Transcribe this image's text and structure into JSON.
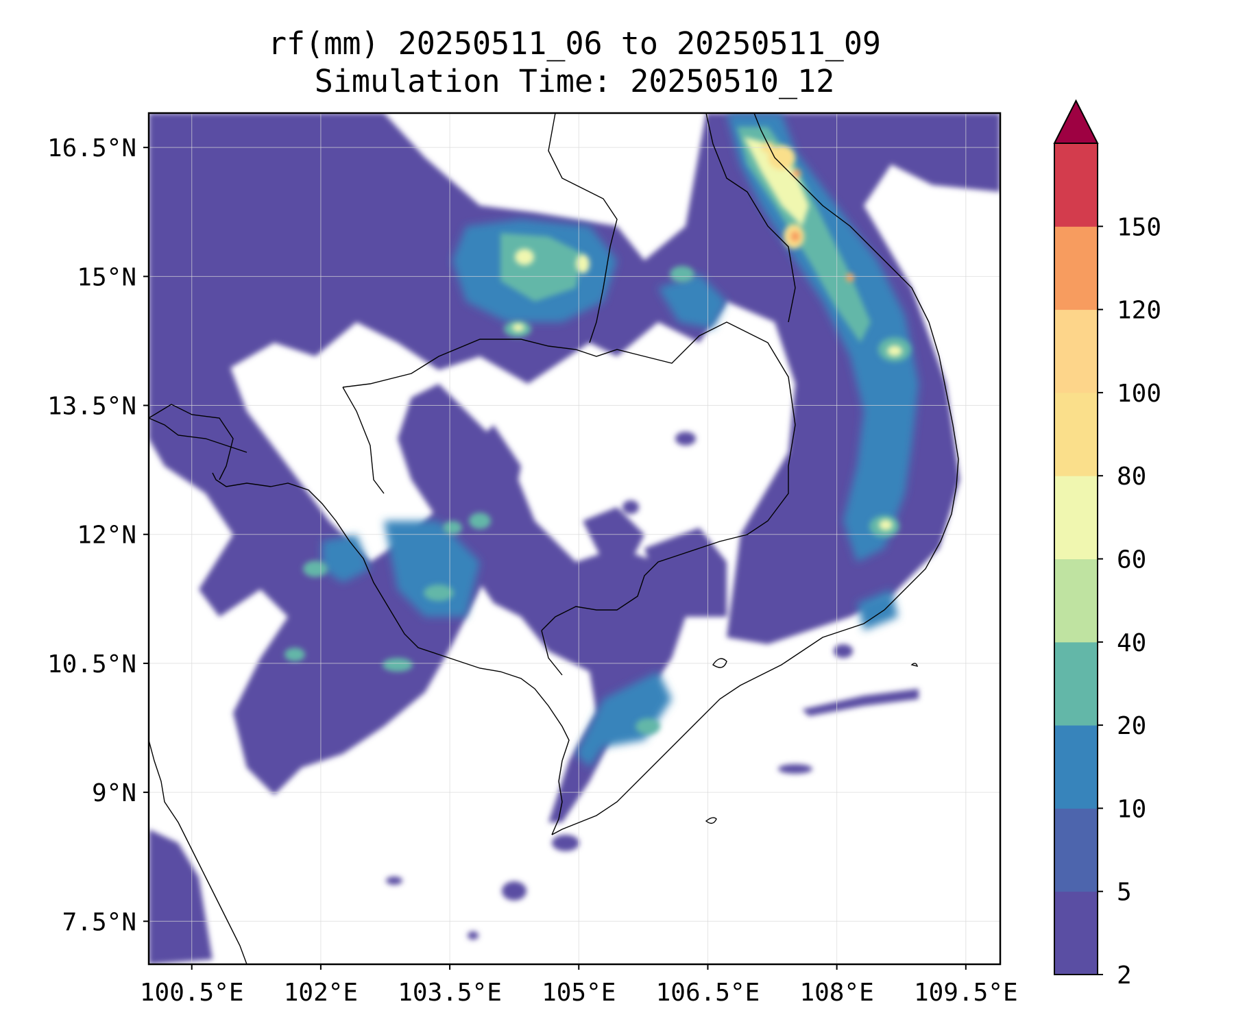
{
  "title": {
    "line1": "rf(mm) 20250511_06 to 20250511_09",
    "line2": "Simulation Time: 20250510_12"
  },
  "map": {
    "lon_range": [
      100.0,
      109.9
    ],
    "lat_range": [
      7.0,
      16.9
    ],
    "x_ticks": [
      "100.5°E",
      "102°E",
      "103.5°E",
      "105°E",
      "106.5°E",
      "108°E",
      "109.5°E"
    ],
    "x_tick_values": [
      100.5,
      102.0,
      103.5,
      105.0,
      106.5,
      108.0,
      109.5
    ],
    "y_ticks": [
      "16.5°N",
      "15°N",
      "13.5°N",
      "12°N",
      "10.5°N",
      "9°N",
      "7.5°N"
    ],
    "y_tick_values": [
      16.5,
      15.0,
      13.5,
      12.0,
      10.5,
      9.0,
      7.5
    ],
    "grid": true,
    "coastline_color": "#000000"
  },
  "colorbar": {
    "levels": [
      "2",
      "5",
      "10",
      "20",
      "40",
      "60",
      "80",
      "100",
      "120",
      "150"
    ],
    "colors": [
      "#5a4ea3",
      "#4d65ad",
      "#3784bb",
      "#63b7a8",
      "#bfe3a1",
      "#f0f7b0",
      "#fadf8b",
      "#fdd58a",
      "#f79c5f",
      "#d33c4d"
    ],
    "extend_color": "#9e0142",
    "extend": "max"
  },
  "rain_blobs": [
    {
      "lon": 107.4,
      "lat": 16.3,
      "rx": 0.35,
      "ry": 0.55,
      "level": 5
    },
    {
      "lon": 107.7,
      "lat": 15.6,
      "rx": 0.25,
      "ry": 0.35,
      "level": 6
    },
    {
      "lon": 103.9,
      "lat": 15.3,
      "rx": 0.3,
      "ry": 0.2,
      "level": 4
    },
    {
      "lon": 104.9,
      "lat": 15.2,
      "rx": 0.2,
      "ry": 0.2,
      "level": 4
    },
    {
      "lon": 108.6,
      "lat": 14.2,
      "rx": 0.2,
      "ry": 0.15,
      "level": 4
    },
    {
      "lon": 108.5,
      "lat": 12.1,
      "rx": 0.15,
      "ry": 0.15,
      "level": 4
    },
    {
      "lon": 105.5,
      "lat": 9.7,
      "rx": 0.3,
      "ry": 0.3,
      "level": 2
    }
  ]
}
